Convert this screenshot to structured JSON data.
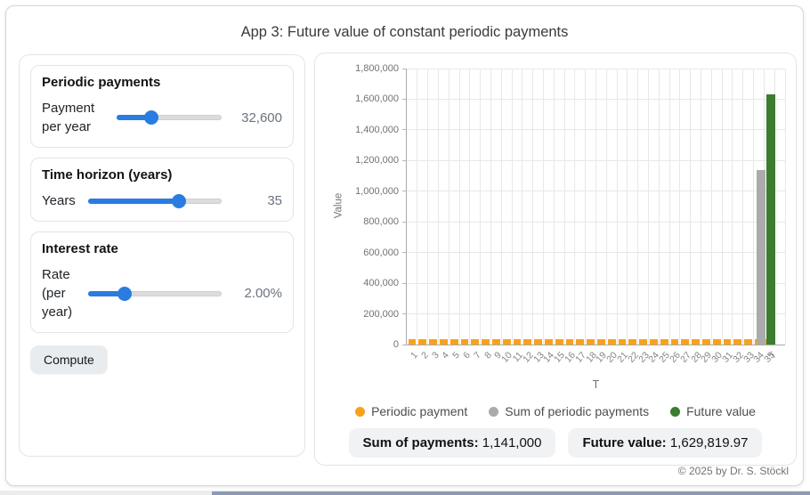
{
  "window": {
    "title": "App 3: Future value of constant periodic payments",
    "footer": "© 2025 by Dr. S. Stöckl"
  },
  "controls": {
    "payment": {
      "header": "Periodic payments",
      "label": "Payment per year",
      "value": "32,600",
      "fill_pct": 33
    },
    "years": {
      "header": "Time horizon (years)",
      "label": "Years",
      "value": "35",
      "fill_pct": 68
    },
    "rate": {
      "header": "Interest rate",
      "label": "Rate (per year)",
      "value": "2.00%",
      "fill_pct": 27
    },
    "compute_label": "Compute"
  },
  "legend": [
    {
      "label": "Periodic payment",
      "color": "#F9A11B"
    },
    {
      "label": "Sum of periodic payments",
      "color": "#ABABAB"
    },
    {
      "label": "Future value",
      "color": "#3C7D30"
    }
  ],
  "summary": {
    "sum_label": "Sum of payments:",
    "sum_value": "1,141,000",
    "fv_label": "Future value:",
    "fv_value": "1,629,819.97"
  },
  "chart_data": {
    "type": "bar",
    "title": "",
    "xlabel": "T",
    "ylabel": "Value",
    "ylim": [
      0,
      1800000
    ],
    "ytick_step": 200000,
    "grid": true,
    "legend_position": "bottom",
    "categories": [
      "1",
      "2",
      "3",
      "4",
      "5",
      "6",
      "7",
      "8",
      "9",
      "10",
      "11",
      "12",
      "13",
      "14",
      "15",
      "16",
      "17",
      "18",
      "19",
      "20",
      "21",
      "22",
      "23",
      "24",
      "25",
      "26",
      "27",
      "28",
      "29",
      "30",
      "31",
      "32",
      "33",
      "34",
      "35",
      "T"
    ],
    "series": [
      {
        "name": "Periodic payment",
        "color": "#F9A11B",
        "values": [
          32600,
          32600,
          32600,
          32600,
          32600,
          32600,
          32600,
          32600,
          32600,
          32600,
          32600,
          32600,
          32600,
          32600,
          32600,
          32600,
          32600,
          32600,
          32600,
          32600,
          32600,
          32600,
          32600,
          32600,
          32600,
          32600,
          32600,
          32600,
          32600,
          32600,
          32600,
          32600,
          32600,
          32600,
          32600,
          0
        ]
      },
      {
        "name": "Sum of periodic payments",
        "color": "#ABABAB",
        "values": [
          0,
          0,
          0,
          0,
          0,
          0,
          0,
          0,
          0,
          0,
          0,
          0,
          0,
          0,
          0,
          0,
          0,
          0,
          0,
          0,
          0,
          0,
          0,
          0,
          0,
          0,
          0,
          0,
          0,
          0,
          0,
          0,
          0,
          0,
          0,
          1141000
        ]
      },
      {
        "name": "Future value",
        "color": "#3C7D30",
        "values": [
          0,
          0,
          0,
          0,
          0,
          0,
          0,
          0,
          0,
          0,
          0,
          0,
          0,
          0,
          0,
          0,
          0,
          0,
          0,
          0,
          0,
          0,
          0,
          0,
          0,
          0,
          0,
          0,
          0,
          0,
          0,
          0,
          0,
          0,
          0,
          1629819.97
        ]
      }
    ]
  }
}
